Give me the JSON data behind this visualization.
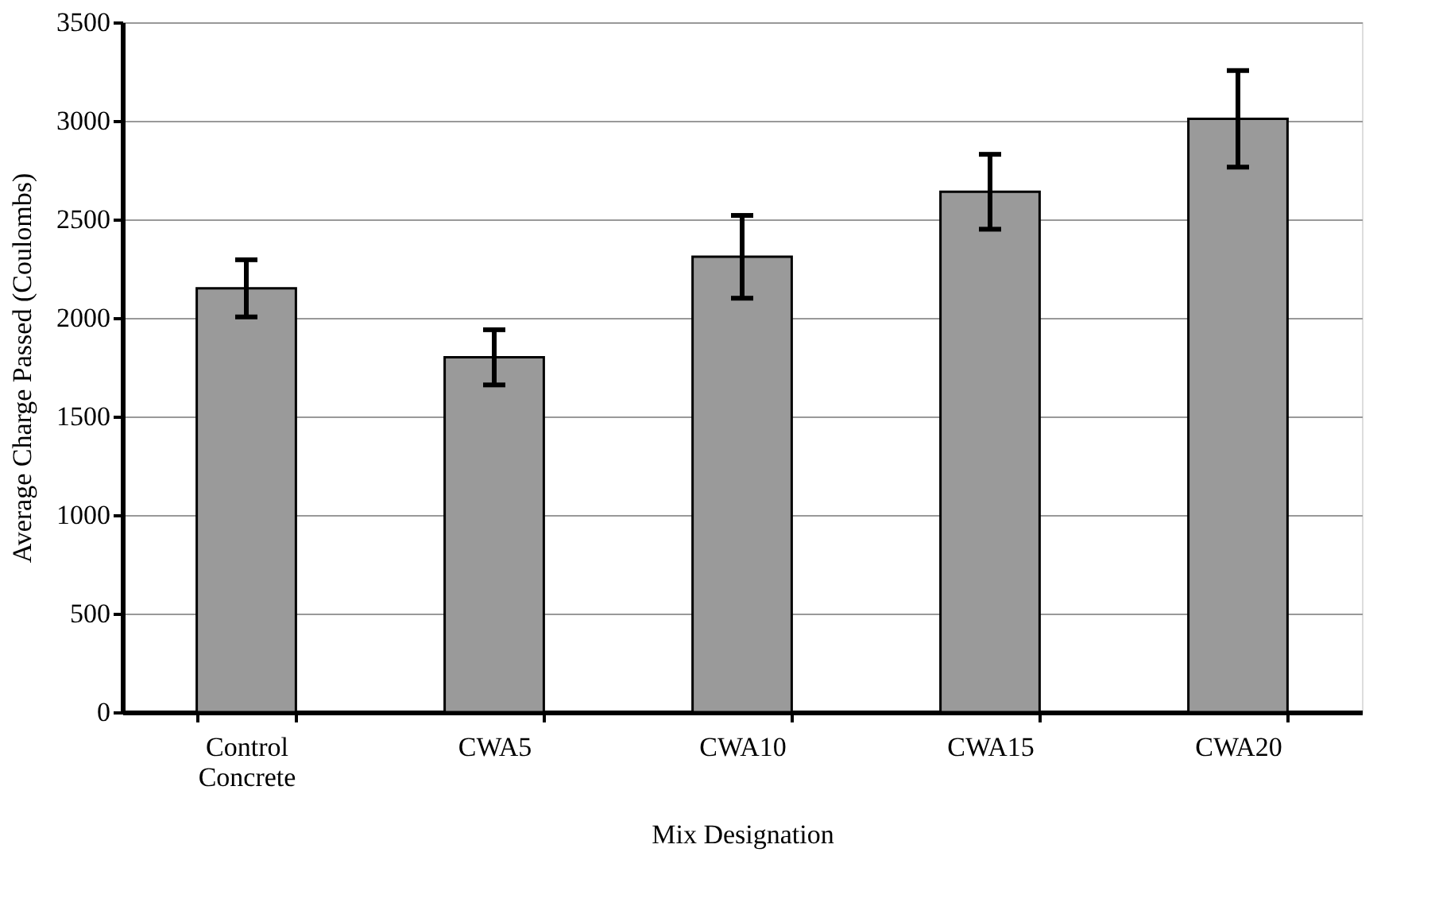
{
  "chart_data": {
    "type": "bar",
    "xlabel": "Mix Designation",
    "ylabel": "Average Charge Passed  (Coulombs)",
    "categories": [
      "Control\nConcrete",
      "CWA5",
      "CWA10",
      "CWA15",
      "CWA20"
    ],
    "values": [
      2150,
      1800,
      2310,
      2640,
      3010
    ],
    "errors": [
      145,
      140,
      210,
      190,
      245
    ],
    "color": "#9a9a9a",
    "ylim": [
      0,
      3500
    ],
    "yticks": [
      0,
      500,
      1000,
      1500,
      2000,
      2500,
      3000,
      3500
    ],
    "grid": "y"
  }
}
